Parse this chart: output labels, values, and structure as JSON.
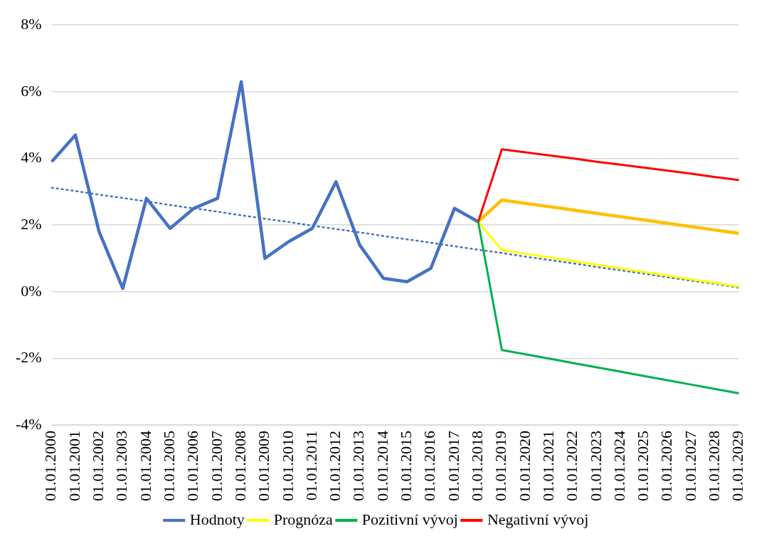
{
  "chart_data": {
    "type": "line",
    "categories": [
      "01.01.2000",
      "01.01.2001",
      "01.01.2002",
      "01.01.2003",
      "01.01.2004",
      "01.01.2005",
      "01.01.2006",
      "01.01.2007",
      "01.01.2008",
      "01.01.2009",
      "01.01.2010",
      "01.01.2011",
      "01.01.2012",
      "01.01.2013",
      "01.01.2014",
      "01.01.2015",
      "01.01.2016",
      "01.01.2017",
      "01.01.2018",
      "01.01.2019",
      "01.01.2020",
      "01.01.2021",
      "01.01.2022",
      "01.01.2023",
      "01.01.2024",
      "01.01.2025",
      "01.01.2026",
      "01.01.2027",
      "01.01.2028",
      "01.01.2029"
    ],
    "series": [
      {
        "name": "Hodnoty",
        "color": "#4472c4",
        "values": [
          3.9,
          4.7,
          1.8,
          0.1,
          2.8,
          1.9,
          2.5,
          2.8,
          6.3,
          1.0,
          1.5,
          1.9,
          3.3,
          1.4,
          0.4,
          0.3,
          0.7,
          2.5,
          2.1,
          null,
          null,
          null,
          null,
          null,
          null,
          null,
          null,
          null,
          null,
          null
        ]
      },
      {
        "color": "#4472c4",
        "line_style": "dotted",
        "values": [
          3.12,
          3.02,
          2.91,
          2.81,
          2.71,
          2.6,
          2.5,
          2.4,
          2.29,
          2.19,
          2.09,
          1.98,
          1.88,
          1.78,
          1.67,
          1.57,
          1.47,
          1.36,
          1.26,
          1.16,
          1.05,
          0.95,
          0.85,
          0.74,
          0.64,
          0.54,
          0.43,
          0.33,
          0.23,
          0.12
        ]
      },
      {
        "color": "#ffc000",
        "values": [
          null,
          null,
          null,
          null,
          null,
          null,
          null,
          null,
          null,
          null,
          null,
          null,
          null,
          null,
          null,
          null,
          null,
          null,
          2.1,
          2.75,
          2.65,
          2.55,
          2.45,
          2.35,
          2.25,
          2.15,
          2.05,
          1.95,
          1.85,
          1.75
        ]
      },
      {
        "name": "Prognóza",
        "color": "#ffff00",
        "values": [
          null,
          null,
          null,
          null,
          null,
          null,
          null,
          null,
          null,
          null,
          null,
          null,
          null,
          null,
          null,
          null,
          null,
          null,
          2.1,
          1.25,
          1.14,
          1.03,
          0.92,
          0.81,
          0.7,
          0.59,
          0.48,
          0.37,
          0.26,
          0.15
        ]
      },
      {
        "name": "Pozitivní vývoj",
        "color": "#00b050",
        "values": [
          null,
          null,
          null,
          null,
          null,
          null,
          null,
          null,
          null,
          null,
          null,
          null,
          null,
          null,
          null,
          null,
          null,
          null,
          2.1,
          -1.75,
          -1.88,
          -2.01,
          -2.14,
          -2.27,
          -2.4,
          -2.53,
          -2.66,
          -2.79,
          -2.92,
          -3.05
        ]
      },
      {
        "name": "Negativní vývoj",
        "color": "#ff0000",
        "values": [
          null,
          null,
          null,
          null,
          null,
          null,
          null,
          null,
          null,
          null,
          null,
          null,
          null,
          null,
          null,
          null,
          null,
          null,
          2.1,
          4.27,
          4.18,
          4.09,
          4.0,
          3.9,
          3.81,
          3.72,
          3.63,
          3.54,
          3.44,
          3.35
        ]
      }
    ],
    "ylim": [
      -4,
      8
    ],
    "yticks": [
      {
        "value": -4,
        "label": "-4%"
      },
      {
        "value": -2,
        "label": "-2%"
      },
      {
        "value": 0,
        "label": "0%"
      },
      {
        "value": 2,
        "label": "2%"
      },
      {
        "value": 4,
        "label": "4%"
      },
      {
        "value": 6,
        "label": "6%"
      },
      {
        "value": 8,
        "label": "8%"
      }
    ],
    "grid": "y",
    "legend": "bottom",
    "marker": "none"
  }
}
